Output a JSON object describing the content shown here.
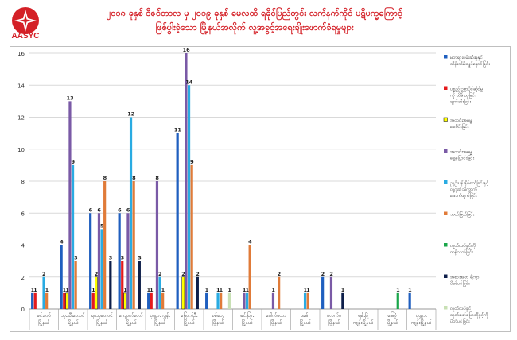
{
  "header": {
    "logo_text": "AASYC",
    "title_line1": "၂၀၁၈ ခုနှစ် ဒီဇင်ဘာလ မှ ၂၀၁၉ ခုနှစ် မေလထိ ရခိုင်ပြည်တွင်း လက်နက်ကိုင် ပဋိပက္ခကြောင့်",
    "title_line2": "ဖြစ်ပွါးခဲ့သော မြို့နယ်အလိုက် လူ့အခွင့်အရေးချိုးဖောက်ခံရမှုများ"
  },
  "colors": {
    "title": "#d42027",
    "series": [
      "#1f5fbf",
      "#e41a1c",
      "#ffff00",
      "#7a5aa6",
      "#29abe2",
      "#e07b39",
      "#1aa64a",
      "#0d1e4a",
      "#c8e0b4"
    ]
  },
  "chart_data": {
    "type": "bar",
    "ylim": [
      0,
      16
    ],
    "yticks": [
      0,
      2,
      4,
      6,
      8,
      10,
      12,
      14,
      16
    ],
    "grid": true,
    "legend": "right",
    "categories": [
      [
        "မင်းတပ်",
        "မြို့နယ်"
      ],
      [
        "ဘူးသီးတောင်",
        "မြို့နယ်"
      ],
      [
        "ရသေ့တောင်",
        "မြို့နယ်"
      ],
      [
        "ကျောက်တော်",
        "မြို့နယ်"
      ],
      [
        "ပုဏ္ဏားကျွန်း",
        "မြို့နယ်"
      ],
      [
        "မြောက်ဦး",
        "မြို့နယ်"
      ],
      [
        "စစ်တွေ",
        "မြို့နယ်"
      ],
      [
        "မင်းပြား",
        "မြို့နယ်"
      ],
      [
        "ပေါက်တော",
        "မြို့နယ်"
      ],
      [
        "အမ်း",
        "မြို့နယ်"
      ],
      [
        "ပလက်ဝ",
        "မြို့နယ်"
      ],
      [
        "ရမ်းဗြဲ",
        "ကျွန်းမြို့နယ်"
      ],
      [
        "မြေပုံ",
        "မြို့နယ်"
      ],
      [
        "ပုဏ္ဏား",
        "ကျွန်းမြို့နယ်"
      ]
    ],
    "series": [
      {
        "name": "မတရားဖမ်းဆီးမှုနှင့် ထိန်းသိမ်းချုပ်နှောင်ခြင်း",
        "values": [
          1,
          4,
          6,
          6,
          1,
          11,
          1,
          0,
          0,
          0,
          2,
          0,
          0,
          1
        ]
      },
      {
        "name": "ပစ္စည်းဥစ္စာပိုင်ဆိုင်မှု ကို သိမ်းယူခြင်း ဖျက်ဆီးခြင်း",
        "values": [
          1,
          1,
          1,
          3,
          1,
          0,
          0,
          0,
          0,
          0,
          0,
          0,
          0,
          0
        ]
      },
      {
        "name": "အတင်းအဓမ္မ စေခိုင်းခြင်း",
        "values": [
          0,
          1,
          2,
          1,
          0,
          2,
          0,
          0,
          0,
          0,
          0,
          0,
          0,
          0
        ]
      },
      {
        "name": "အတင်းအဓမ္မ ရွှေ့ပြောင်းခြင်း",
        "values": [
          0,
          13,
          6,
          6,
          8,
          16,
          0,
          1,
          1,
          0,
          2,
          0,
          0,
          0
        ]
      },
      {
        "name": "ညှဉ်းပန်းနှိပ်စက်ခြင်းနှင့် လူ့ဂုဏ်သိက္ခာကို ဖောက်ဖျက်ခြင်း",
        "values": [
          2,
          9,
          5,
          12,
          2,
          14,
          1,
          1,
          0,
          1,
          0,
          0,
          0,
          0
        ]
      },
      {
        "name": "သတ်ဖြတ်ခြင်း",
        "values": [
          1,
          3,
          8,
          8,
          1,
          9,
          1,
          4,
          2,
          1,
          0,
          0,
          0,
          0
        ]
      },
      {
        "name": "လူ့တ်လပ်ခွင့်ကို ကန့်သတ်ခြင်း",
        "values": [
          0,
          0,
          0,
          0,
          0,
          0,
          0,
          0,
          0,
          0,
          0,
          0,
          1,
          0
        ]
      },
      {
        "name": "အစားအစာ ရိက္ခာ ပိတ်ပင်ခြင်း",
        "values": [
          0,
          0,
          3,
          3,
          0,
          2,
          0,
          0,
          0,
          0,
          1,
          0,
          0,
          0
        ]
      },
      {
        "name": "လူ့တ်လပ်ခွင့် ထုတ်ဖော်ပြောဆိုခွင့်ကို ပိတ်ပင်ခြင်း",
        "values": [
          0,
          0,
          0,
          0,
          0,
          0,
          1,
          0,
          0,
          0,
          0,
          0,
          0,
          0
        ]
      }
    ]
  }
}
